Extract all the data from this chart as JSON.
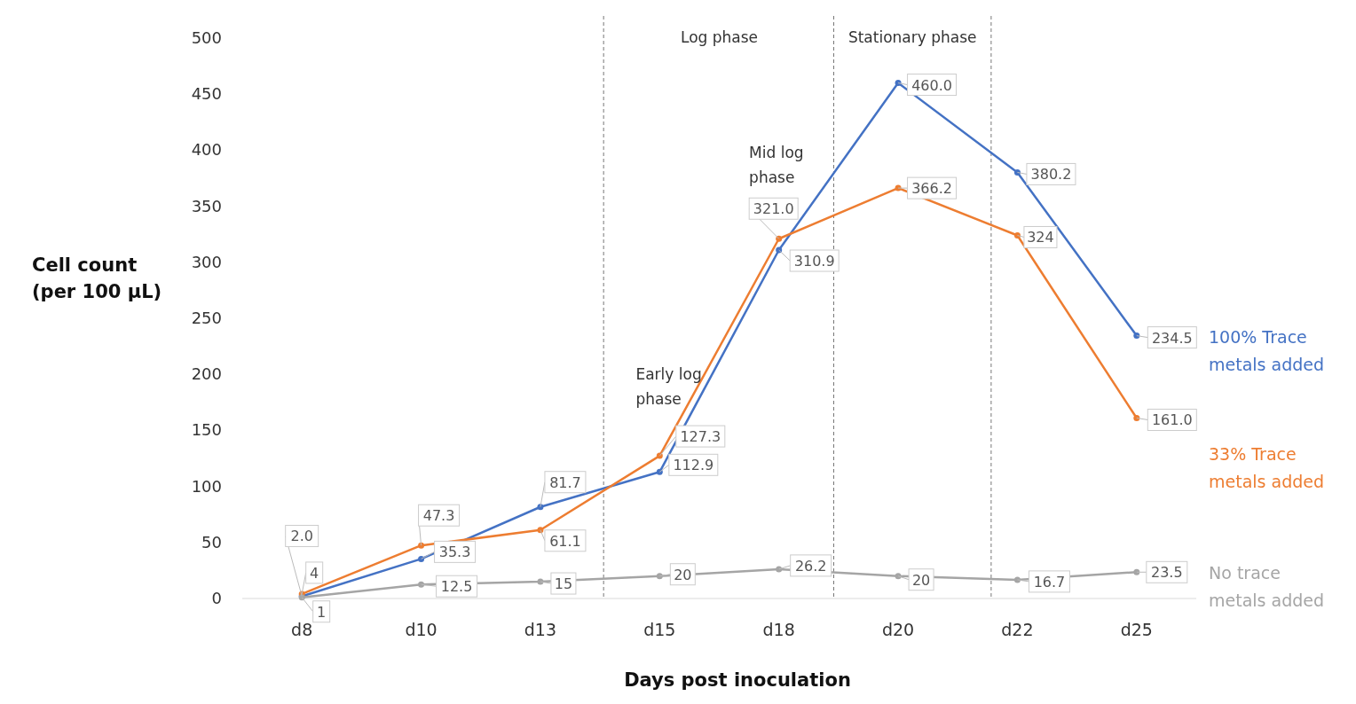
{
  "chart_data": {
    "type": "line",
    "xlabel": "Days post inoculation",
    "ylabel": "Cell count (per 100 µL)",
    "categories": [
      "d8",
      "d10",
      "d13",
      "d15",
      "d18",
      "d20",
      "d22",
      "d25"
    ],
    "ylim": [
      0,
      500
    ],
    "yticks": [
      0,
      50,
      100,
      150,
      200,
      250,
      300,
      350,
      400,
      450,
      500
    ],
    "grid": false,
    "legend": false,
    "marker": "circle",
    "line_style": "solid",
    "series": [
      {
        "name": "100% Trace metals added",
        "color": "#4472c4",
        "values": [
          2.0,
          35.3,
          81.7,
          112.9,
          310.9,
          460.0,
          380.2,
          234.5
        ],
        "value_labels": [
          "2.0",
          "35.3",
          "81.7",
          "112.9",
          "310.9",
          "460.0",
          "380.2",
          "234.5"
        ]
      },
      {
        "name": "33% Trace metals added",
        "color": "#ed7d31",
        "values": [
          4,
          47.3,
          61.1,
          127.3,
          321.0,
          366.2,
          324,
          161.0
        ],
        "value_labels": [
          "4",
          "47.3",
          "61.1",
          "127.3",
          "321.0",
          "366.2",
          "324",
          "161.0"
        ]
      },
      {
        "name": "No trace metals added",
        "color": "#a5a5a5",
        "values": [
          1,
          12.5,
          15,
          20,
          26.2,
          20,
          16.7,
          23.5
        ],
        "value_labels": [
          "1",
          "12.5",
          "15",
          "20",
          "26.2",
          "20",
          "16.7",
          "23.5"
        ]
      }
    ],
    "annotations": [
      "Log phase",
      "Stationary phase",
      "Early log phase",
      "Mid log phase"
    ]
  }
}
